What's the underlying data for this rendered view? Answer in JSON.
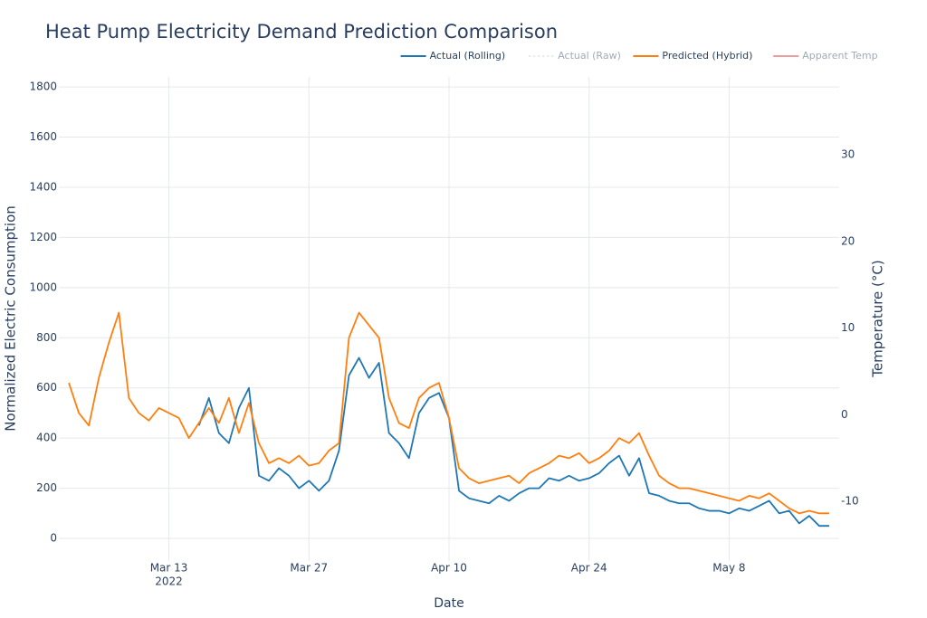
{
  "chart_data": {
    "type": "line",
    "title": "Heat Pump Electricity Demand Prediction Comparison",
    "x_label": "Date",
    "y_label": "Normalized Electric Consumption",
    "y2_label": "Temperature (°C)",
    "x_year_label": "2022",
    "xlim": [
      "2022-03-02",
      "2022-05-19"
    ],
    "xticks": [
      {
        "value": "2022-03-13",
        "label": "Mar 13"
      },
      {
        "value": "2022-03-27",
        "label": "Mar 27"
      },
      {
        "value": "2022-04-10",
        "label": "Apr 10"
      },
      {
        "value": "2022-04-24",
        "label": "Apr 24"
      },
      {
        "value": "2022-05-08",
        "label": "May 8"
      }
    ],
    "ylim": [
      -90,
      1840
    ],
    "yticks": [
      0,
      200,
      400,
      600,
      800,
      1000,
      1200,
      1400,
      1600,
      1800
    ],
    "y2lim": [
      -16.9,
      39
    ],
    "y2ticks": [
      -10,
      0,
      10,
      20,
      30
    ],
    "grid": true,
    "legend": "top-right",
    "x": [
      "2022-03-03",
      "2022-03-04",
      "2022-03-05",
      "2022-03-06",
      "2022-03-07",
      "2022-03-08",
      "2022-03-09",
      "2022-03-10",
      "2022-03-11",
      "2022-03-12",
      "2022-03-13",
      "2022-03-14",
      "2022-03-15",
      "2022-03-16",
      "2022-03-17",
      "2022-03-18",
      "2022-03-19",
      "2022-03-20",
      "2022-03-21",
      "2022-03-22",
      "2022-03-23",
      "2022-03-24",
      "2022-03-25",
      "2022-03-26",
      "2022-03-27",
      "2022-03-28",
      "2022-03-29",
      "2022-03-30",
      "2022-03-31",
      "2022-04-01",
      "2022-04-02",
      "2022-04-03",
      "2022-04-04",
      "2022-04-05",
      "2022-04-06",
      "2022-04-07",
      "2022-04-08",
      "2022-04-09",
      "2022-04-10",
      "2022-04-11",
      "2022-04-12",
      "2022-04-13",
      "2022-04-14",
      "2022-04-15",
      "2022-04-16",
      "2022-04-17",
      "2022-04-18",
      "2022-04-19",
      "2022-04-20",
      "2022-04-21",
      "2022-04-22",
      "2022-04-23",
      "2022-04-24",
      "2022-04-25",
      "2022-04-26",
      "2022-04-27",
      "2022-04-28",
      "2022-04-29",
      "2022-04-30",
      "2022-05-01",
      "2022-05-02",
      "2022-05-03",
      "2022-05-04",
      "2022-05-05",
      "2022-05-06",
      "2022-05-07",
      "2022-05-08",
      "2022-05-09",
      "2022-05-10",
      "2022-05-11",
      "2022-05-12",
      "2022-05-13",
      "2022-05-14",
      "2022-05-15",
      "2022-05-16",
      "2022-05-17",
      "2022-05-18"
    ],
    "series": [
      {
        "name": "Actual (Rolling)",
        "color": "#1f77b4",
        "visible": true,
        "values": [
          null,
          null,
          null,
          null,
          null,
          null,
          null,
          null,
          null,
          null,
          null,
          null,
          null,
          450,
          560,
          420,
          380,
          520,
          600,
          250,
          230,
          280,
          250,
          200,
          230,
          190,
          230,
          350,
          650,
          720,
          640,
          700,
          420,
          380,
          320,
          500,
          560,
          580,
          480,
          190,
          160,
          150,
          140,
          170,
          150,
          180,
          200,
          200,
          240,
          230,
          250,
          230,
          240,
          260,
          300,
          330,
          250,
          320,
          180,
          170,
          150,
          140,
          140,
          120,
          110,
          110,
          100,
          120,
          110,
          130,
          150,
          100,
          110,
          60,
          90,
          50,
          50
        ]
      },
      {
        "name": "Actual (Raw)",
        "color": "#c8ccd2",
        "dash": "dot",
        "visible": false
      },
      {
        "name": "Predicted (Hybrid)",
        "color": "#ff7f0e",
        "visible": true,
        "values": [
          620,
          500,
          450,
          640,
          780,
          900,
          560,
          500,
          470,
          520,
          500,
          480,
          400,
          460,
          520,
          460,
          560,
          420,
          540,
          380,
          300,
          320,
          300,
          330,
          290,
          300,
          350,
          380,
          800,
          900,
          850,
          800,
          560,
          460,
          440,
          560,
          600,
          620,
          480,
          280,
          240,
          220,
          230,
          240,
          250,
          220,
          260,
          280,
          300,
          330,
          320,
          340,
          300,
          320,
          350,
          400,
          380,
          420,
          330,
          250,
          220,
          200,
          200,
          190,
          180,
          170,
          160,
          150,
          170,
          160,
          180,
          150,
          120,
          100,
          110,
          100,
          100
        ]
      },
      {
        "name": "Apparent Temp",
        "color": "#d62728",
        "axis": "y2",
        "visible": false
      }
    ]
  }
}
